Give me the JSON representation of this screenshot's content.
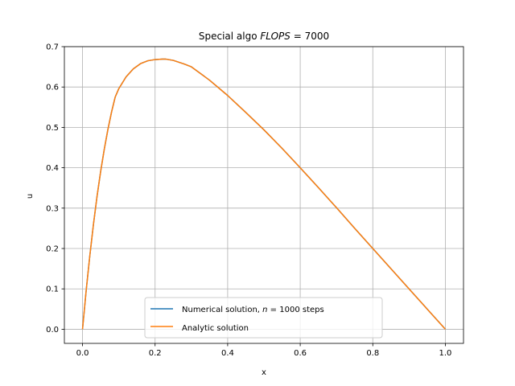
{
  "chart_data": {
    "type": "line",
    "title_prefix": "Special algo ",
    "title_math_var": "FLOPS",
    "title_math_rest": " = 7000",
    "xlabel": "x",
    "ylabel": "u",
    "xlim": [
      -0.05,
      1.05
    ],
    "ylim": [
      -0.035,
      0.7
    ],
    "x_ticks": [
      0.0,
      0.2,
      0.4,
      0.6,
      0.8,
      1.0
    ],
    "x_tick_labels": [
      "0.0",
      "0.2",
      "0.4",
      "0.6",
      "0.8",
      "1.0"
    ],
    "y_ticks": [
      0.0,
      0.1,
      0.2,
      0.3,
      0.4,
      0.5,
      0.6,
      0.7
    ],
    "y_tick_labels": [
      "0.0",
      "0.1",
      "0.2",
      "0.3",
      "0.4",
      "0.5",
      "0.6",
      "0.7"
    ],
    "grid": true,
    "legend_position": "lower-center",
    "legend": [
      {
        "pre": "Numerical solution, ",
        "var": "n",
        "post": " = 1000 steps",
        "color": "#1f77b4"
      },
      {
        "pre": "Analytic solution",
        "var": "",
        "post": "",
        "color": "#ff7f0e"
      }
    ],
    "series": [
      {
        "name": "Numerical solution, n = 1000 steps",
        "color": "#1f77b4",
        "x": [
          0.0,
          0.01,
          0.02,
          0.03,
          0.04,
          0.05,
          0.06,
          0.07,
          0.08,
          0.09,
          0.1,
          0.12,
          0.14,
          0.16,
          0.18,
          0.2,
          0.22,
          0.23,
          0.25,
          0.28,
          0.3,
          0.35,
          0.4,
          0.45,
          0.5,
          0.55,
          0.6,
          0.65,
          0.7,
          0.75,
          0.8,
          0.85,
          0.9,
          0.95,
          1.0
        ],
        "y": [
          0.0,
          0.095,
          0.181,
          0.259,
          0.329,
          0.391,
          0.446,
          0.495,
          0.538,
          0.575,
          0.596,
          0.625,
          0.645,
          0.658,
          0.665,
          0.668,
          0.669,
          0.669,
          0.666,
          0.657,
          0.65,
          0.617,
          0.579,
          0.537,
          0.494,
          0.448,
          0.4,
          0.351,
          0.301,
          0.25,
          0.2,
          0.15,
          0.1,
          0.05,
          0.0
        ]
      },
      {
        "name": "Analytic solution",
        "color": "#ff7f0e",
        "x": [
          0.0,
          0.01,
          0.02,
          0.03,
          0.04,
          0.05,
          0.06,
          0.07,
          0.08,
          0.09,
          0.1,
          0.12,
          0.14,
          0.16,
          0.18,
          0.2,
          0.22,
          0.23,
          0.25,
          0.28,
          0.3,
          0.35,
          0.4,
          0.45,
          0.5,
          0.55,
          0.6,
          0.65,
          0.7,
          0.75,
          0.8,
          0.85,
          0.9,
          0.95,
          1.0
        ],
        "y": [
          0.0,
          0.095,
          0.181,
          0.259,
          0.329,
          0.391,
          0.446,
          0.495,
          0.538,
          0.575,
          0.596,
          0.625,
          0.645,
          0.658,
          0.665,
          0.668,
          0.669,
          0.669,
          0.666,
          0.657,
          0.65,
          0.617,
          0.579,
          0.537,
          0.494,
          0.448,
          0.4,
          0.351,
          0.301,
          0.25,
          0.2,
          0.15,
          0.1,
          0.05,
          0.0
        ]
      }
    ]
  }
}
